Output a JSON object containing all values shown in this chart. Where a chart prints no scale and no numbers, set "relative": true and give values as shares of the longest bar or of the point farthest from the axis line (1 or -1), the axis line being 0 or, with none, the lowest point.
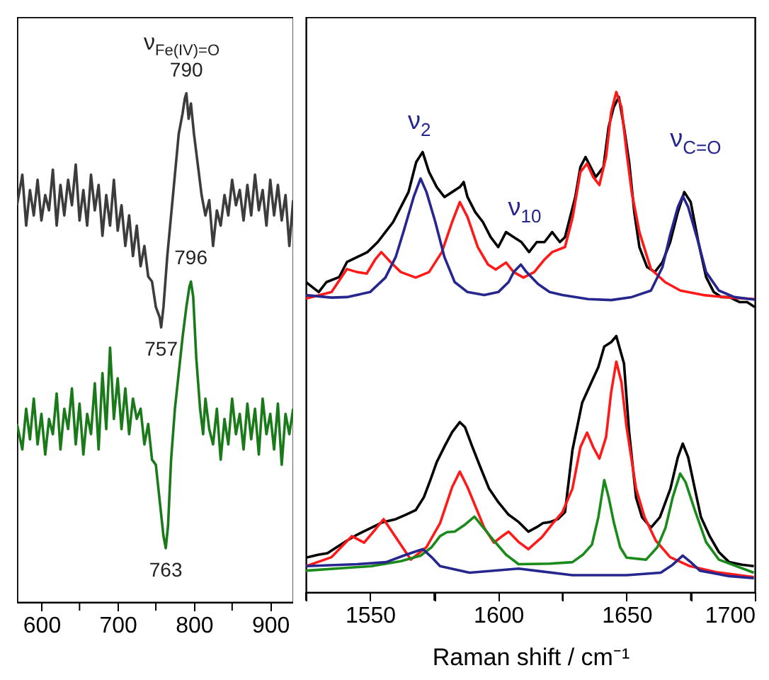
{
  "chart_data": [
    {
      "type": "line",
      "relative": true,
      "xlim": [
        568,
        930
      ],
      "xticks": [
        600,
        {
          "value": 650,
          "label": null
        },
        700,
        {
          "value": 750,
          "label": null
        },
        800,
        {
          "value": 850,
          "label": null
        },
        900
      ],
      "tick_labels": "x",
      "annotations": [
        "ν$_{Fe(IV)=O}$",
        {
          "text": "790",
          "x": 790,
          "y": 1.0
        },
        {
          "text": "796",
          "x": 796,
          "y": 0.63
        },
        {
          "text": "757",
          "x": 757,
          "y": 0.54
        },
        {
          "text": "763",
          "x": 763,
          "y": 0.106
        }
      ],
      "series": [
        {
          "color": "#3c3c3c",
          "x": [
            568,
            575,
            580,
            585,
            590,
            595,
            600,
            605,
            610,
            615,
            620,
            625,
            630,
            635,
            640,
            645,
            650,
            655,
            660,
            665,
            670,
            675,
            680,
            685,
            690,
            695,
            700,
            705,
            710,
            715,
            720,
            725,
            730,
            735,
            740,
            745,
            750,
            755,
            757,
            760,
            765,
            770,
            775,
            780,
            785,
            788,
            790,
            793,
            796,
            800,
            805,
            810,
            815,
            820,
            825,
            830,
            835,
            840,
            845,
            850,
            855,
            860,
            865,
            870,
            875,
            880,
            885,
            890,
            895,
            900,
            905,
            910,
            915,
            920,
            925,
            930
          ],
          "values": [
            0.78,
            0.84,
            0.74,
            0.81,
            0.76,
            0.83,
            0.75,
            0.8,
            0.77,
            0.85,
            0.74,
            0.82,
            0.76,
            0.83,
            0.78,
            0.86,
            0.75,
            0.81,
            0.74,
            0.84,
            0.77,
            0.82,
            0.72,
            0.8,
            0.74,
            0.83,
            0.73,
            0.78,
            0.7,
            0.76,
            0.68,
            0.74,
            0.66,
            0.7,
            0.64,
            0.63,
            0.58,
            0.56,
            0.54,
            0.58,
            0.68,
            0.76,
            0.84,
            0.92,
            0.96,
            0.99,
            1.0,
            0.95,
            0.98,
            0.92,
            0.86,
            0.8,
            0.76,
            0.79,
            0.7,
            0.77,
            0.74,
            0.8,
            0.76,
            0.83,
            0.78,
            0.81,
            0.75,
            0.82,
            0.76,
            0.84,
            0.77,
            0.81,
            0.74,
            0.83,
            0.76,
            0.82,
            0.75,
            0.8,
            0.7,
            0.79
          ]
        },
        {
          "color": "#1a7a1a",
          "x": [
            568,
            575,
            580,
            585,
            590,
            595,
            600,
            605,
            610,
            615,
            620,
            625,
            630,
            635,
            640,
            645,
            650,
            655,
            660,
            665,
            670,
            675,
            680,
            685,
            690,
            695,
            700,
            705,
            710,
            715,
            720,
            725,
            730,
            735,
            740,
            745,
            750,
            755,
            760,
            763,
            766,
            770,
            775,
            780,
            785,
            790,
            794,
            796,
            799,
            803,
            808,
            812,
            815,
            820,
            825,
            830,
            835,
            840,
            845,
            850,
            855,
            860,
            865,
            870,
            875,
            880,
            885,
            890,
            895,
            900,
            905,
            910,
            915,
            920,
            925,
            930
          ],
          "values": [
            0.35,
            0.3,
            0.38,
            0.32,
            0.4,
            0.31,
            0.37,
            0.29,
            0.36,
            0.33,
            0.41,
            0.3,
            0.38,
            0.34,
            0.42,
            0.31,
            0.39,
            0.29,
            0.37,
            0.33,
            0.43,
            0.3,
            0.45,
            0.34,
            0.5,
            0.36,
            0.44,
            0.34,
            0.42,
            0.33,
            0.4,
            0.36,
            0.38,
            0.31,
            0.35,
            0.28,
            0.27,
            0.2,
            0.13,
            0.106,
            0.15,
            0.28,
            0.38,
            0.45,
            0.52,
            0.58,
            0.62,
            0.63,
            0.6,
            0.48,
            0.38,
            0.33,
            0.4,
            0.34,
            0.31,
            0.38,
            0.28,
            0.36,
            0.31,
            0.4,
            0.33,
            0.37,
            0.3,
            0.39,
            0.32,
            0.38,
            0.29,
            0.4,
            0.33,
            0.37,
            0.3,
            0.39,
            0.27,
            0.37,
            0.33,
            0.38
          ]
        }
      ]
    },
    {
      "type": "line",
      "relative": true,
      "xlim": [
        1525,
        1700
      ],
      "xticks": [
        {
          "value": 1525,
          "label": null
        },
        1550,
        {
          "value": 1575,
          "label": null
        },
        1600,
        {
          "value": 1625,
          "label": null
        },
        1650,
        {
          "value": 1675,
          "label": null
        },
        1700
      ],
      "tick_labels": "x",
      "xlabel": "Raman shift / cm⁻¹",
      "annotations": [
        {
          "text": "ν$_{2}$",
          "x": 1569.7,
          "y": 0.827
        },
        {
          "text": "ν$_{10}$",
          "x": 1608.8,
          "y": 0.655
        },
        {
          "text": "ν$_{C=O}$",
          "x": 1671.9,
          "y": 0.792
        }
      ],
      "series": [
        {
          "color": "#000000",
          "x": [
            1525,
            1530,
            1533,
            1538,
            1541,
            1545,
            1549,
            1553,
            1556,
            1559,
            1562,
            1565,
            1568,
            1570.5,
            1573,
            1576,
            1579,
            1582,
            1585,
            1586.5,
            1588,
            1591,
            1594,
            1597,
            1600,
            1603,
            1606,
            1609,
            1612,
            1615,
            1618,
            1621,
            1624,
            1626,
            1628,
            1630,
            1632,
            1634,
            1636,
            1638,
            1641,
            1643,
            1645,
            1647,
            1649,
            1651,
            1653,
            1655,
            1658,
            1661,
            1664,
            1667,
            1670,
            1672.5,
            1675,
            1678,
            1681,
            1684,
            1687,
            1690,
            1694,
            1697,
            1700
          ],
          "values": [
            0.62,
            0.6,
            0.62,
            0.63,
            0.66,
            0.67,
            0.68,
            0.7,
            0.72,
            0.74,
            0.77,
            0.8,
            0.86,
            0.88,
            0.84,
            0.81,
            0.79,
            0.8,
            0.81,
            0.82,
            0.79,
            0.76,
            0.74,
            0.71,
            0.69,
            0.72,
            0.71,
            0.7,
            0.68,
            0.7,
            0.7,
            0.72,
            0.7,
            0.71,
            0.75,
            0.79,
            0.85,
            0.87,
            0.85,
            0.83,
            0.85,
            0.93,
            0.97,
            0.99,
            0.93,
            0.86,
            0.76,
            0.69,
            0.65,
            0.64,
            0.66,
            0.7,
            0.76,
            0.8,
            0.78,
            0.7,
            0.63,
            0.6,
            0.59,
            0.59,
            0.58,
            0.58,
            0.57
          ]
        },
        {
          "color": "#ff1a1a",
          "x": [
            1525,
            1535,
            1541,
            1545,
            1548.7,
            1552,
            1554.4,
            1558,
            1562,
            1567.8,
            1573,
            1578,
            1582,
            1585,
            1588,
            1592,
            1596,
            1599,
            1603,
            1606,
            1609.8,
            1614,
            1618,
            1621,
            1626,
            1629,
            1632,
            1634.6,
            1637,
            1639.4,
            1642,
            1644,
            1646,
            1648,
            1650,
            1652,
            1655,
            1659.5,
            1665,
            1671,
            1680,
            1690,
            1700
          ],
          "values": [
            0.587,
            0.6,
            0.646,
            0.64,
            0.637,
            0.665,
            0.68,
            0.66,
            0.64,
            0.629,
            0.64,
            0.68,
            0.74,
            0.78,
            0.75,
            0.69,
            0.655,
            0.645,
            0.659,
            0.64,
            0.629,
            0.64,
            0.665,
            0.68,
            0.69,
            0.75,
            0.84,
            0.857,
            0.83,
            0.814,
            0.87,
            0.96,
            1.0,
            0.97,
            0.88,
            0.8,
            0.72,
            0.646,
            0.62,
            0.603,
            0.594,
            0.589,
            0.586
          ]
        },
        {
          "color": "#26268f",
          "x": [
            1525,
            1535,
            1541,
            1550,
            1556,
            1560,
            1563,
            1567,
            1569.7,
            1572,
            1575.4,
            1579,
            1583,
            1588,
            1594.5,
            1600,
            1604,
            1606,
            1608.8,
            1611,
            1615.5,
            1620,
            1625,
            1635,
            1644,
            1652,
            1659.5,
            1664,
            1667,
            1670,
            1671.9,
            1674,
            1677.6,
            1681,
            1686,
            1692,
            1700
          ],
          "values": [
            0.594,
            0.589,
            0.59,
            0.6,
            0.629,
            0.67,
            0.72,
            0.79,
            0.827,
            0.8,
            0.741,
            0.67,
            0.62,
            0.6,
            0.594,
            0.6,
            0.62,
            0.64,
            0.655,
            0.64,
            0.616,
            0.6,
            0.594,
            0.586,
            0.584,
            0.59,
            0.603,
            0.65,
            0.715,
            0.77,
            0.792,
            0.77,
            0.706,
            0.64,
            0.603,
            0.59,
            0.585
          ]
        },
        {
          "color": "#000000",
          "x": [
            1525,
            1530,
            1533.4,
            1537,
            1541,
            1545,
            1550.6,
            1555,
            1560,
            1564,
            1567.8,
            1571,
            1573.5,
            1576,
            1579.2,
            1582,
            1585,
            1587,
            1589.7,
            1593,
            1596.4,
            1600,
            1604,
            1608,
            1611.7,
            1615,
            1617.4,
            1620,
            1623.2,
            1626,
            1628.9,
            1632.7,
            1636.5,
            1639,
            1641.3,
            1644,
            1646,
            1649,
            1651,
            1653.7,
            1656,
            1659.5,
            1663,
            1667.1,
            1670,
            1671.9,
            1674,
            1676.6,
            1679,
            1682.4,
            1686,
            1690,
            1695,
            1699.6
          ],
          "values": [
            0.069,
            0.075,
            0.078,
            0.09,
            0.103,
            0.115,
            0.129,
            0.14,
            0.146,
            0.155,
            0.164,
            0.19,
            0.224,
            0.26,
            0.293,
            0.32,
            0.34,
            0.33,
            0.293,
            0.25,
            0.207,
            0.18,
            0.155,
            0.14,
            0.121,
            0.13,
            0.138,
            0.14,
            0.146,
            0.16,
            0.284,
            0.379,
            0.422,
            0.45,
            0.491,
            0.5,
            0.512,
            0.457,
            0.32,
            0.189,
            0.15,
            0.129,
            0.15,
            0.207,
            0.27,
            0.297,
            0.27,
            0.207,
            0.15,
            0.112,
            0.08,
            0.06,
            0.055,
            0.052
          ]
        },
        {
          "color": "#ff1a1a",
          "x": [
            1525,
            1535,
            1542.9,
            1547.7,
            1552,
            1555.3,
            1560,
            1565.9,
            1572,
            1577.3,
            1582,
            1585,
            1588,
            1594.5,
            1598.3,
            1601,
            1604,
            1608,
            1611.7,
            1617,
            1621.3,
            1625,
            1628.9,
            1632,
            1634.6,
            1637,
            1639.4,
            1642,
            1644,
            1646,
            1648,
            1650,
            1653.7,
            1657,
            1661.4,
            1667,
            1674.7,
            1685,
            1699.6
          ],
          "values": [
            0.052,
            0.07,
            0.112,
            0.099,
            0.125,
            0.146,
            0.11,
            0.065,
            0.09,
            0.138,
            0.21,
            0.241,
            0.21,
            0.129,
            0.099,
            0.11,
            0.121,
            0.1,
            0.086,
            0.11,
            0.138,
            0.16,
            0.207,
            0.29,
            0.319,
            0.29,
            0.267,
            0.31,
            0.4,
            0.461,
            0.42,
            0.33,
            0.207,
            0.15,
            0.103,
            0.07,
            0.052,
            0.04,
            0.03
          ]
        },
        {
          "color": "#1a8a1a",
          "x": [
            1525,
            1550.6,
            1562,
            1569.7,
            1574,
            1577.3,
            1580,
            1583,
            1587,
            1590.7,
            1594,
            1598.3,
            1603,
            1607.9,
            1620,
            1628.9,
            1633,
            1636.5,
            1639,
            1641.3,
            1643,
            1645.1,
            1647.5,
            1650,
            1657.6,
            1662,
            1665.2,
            1668,
            1670.9,
            1673,
            1676.6,
            1681,
            1686,
            1699.6
          ],
          "values": [
            0.043,
            0.052,
            0.062,
            0.073,
            0.09,
            0.112,
            0.12,
            0.121,
            0.135,
            0.151,
            0.13,
            0.103,
            0.075,
            0.056,
            0.057,
            0.06,
            0.075,
            0.095,
            0.15,
            0.224,
            0.19,
            0.138,
            0.09,
            0.069,
            0.065,
            0.09,
            0.129,
            0.19,
            0.237,
            0.22,
            0.164,
            0.1,
            0.065,
            0.039
          ]
        },
        {
          "color": "#26268f",
          "x": [
            1525,
            1545,
            1556.3,
            1563,
            1567,
            1570.6,
            1574,
            1577.3,
            1588.8,
            1607.9,
            1628.9,
            1650,
            1663.3,
            1668,
            1671.9,
            1675,
            1678.6,
            1690,
            1699.6
          ],
          "values": [
            0.052,
            0.056,
            0.06,
            0.073,
            0.08,
            0.086,
            0.07,
            0.052,
            0.039,
            0.047,
            0.034,
            0.034,
            0.039,
            0.055,
            0.073,
            0.06,
            0.043,
            0.032,
            0.028
          ]
        }
      ]
    }
  ]
}
